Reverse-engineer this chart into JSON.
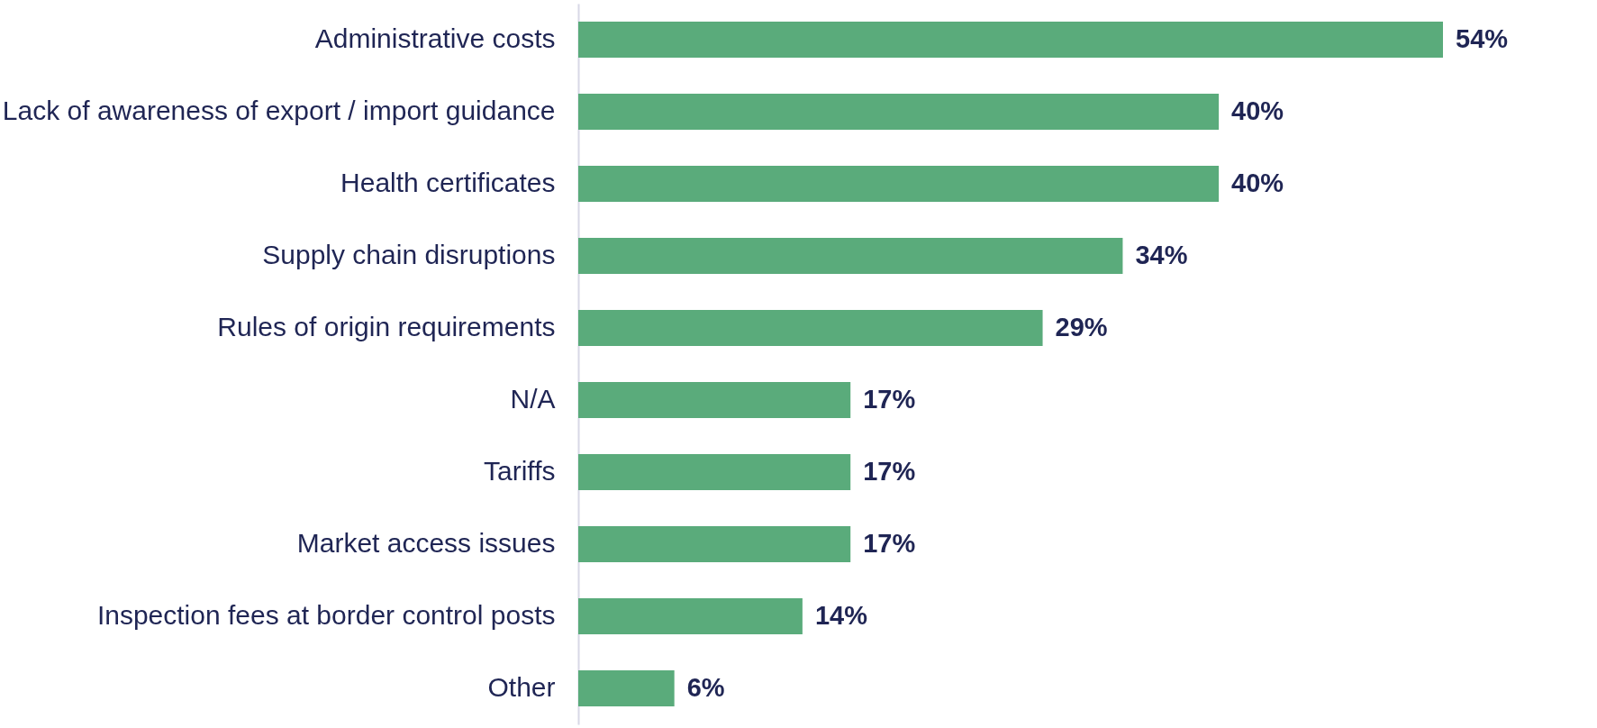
{
  "chart_data": {
    "type": "bar",
    "orientation": "horizontal",
    "categories": [
      "Administrative costs",
      "Lack of awareness of export / import guidance",
      "Health certificates",
      "Supply chain disruptions",
      "Rules of origin requirements",
      "N/A",
      "Tariffs",
      "Market access issues",
      "Inspection fees at border control posts",
      "Other"
    ],
    "values": [
      54,
      40,
      40,
      34,
      29,
      17,
      17,
      17,
      14,
      6
    ],
    "value_labels": [
      "54%",
      "40%",
      "40%",
      "34%",
      "29%",
      "17%",
      "17%",
      "17%",
      "14%",
      "6%"
    ],
    "color": "#5aab7b"
  }
}
